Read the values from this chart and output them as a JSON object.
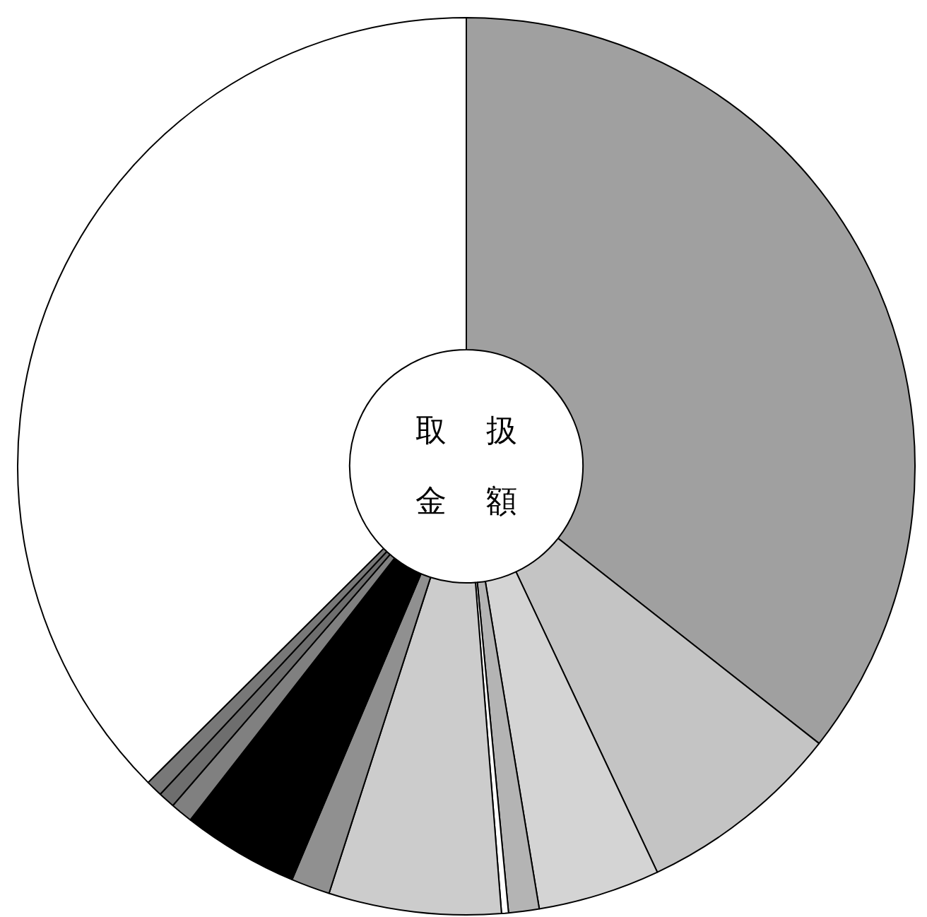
{
  "chart_data": {
    "type": "donut",
    "title": "取扱金額",
    "categories": [
      null,
      null,
      null,
      null,
      null,
      null,
      null,
      null,
      null,
      null,
      null,
      null
    ],
    "values": [
      35.6,
      7.4,
      4.4,
      1.1,
      0.25,
      6.2,
      1.4,
      4.2,
      0.8,
      0.6,
      0.6,
      37.45
    ],
    "colors": [
      "#a0a0a0",
      "#c4c4c4",
      "#d4d4d4",
      "#b4b4b4",
      "#ffffff",
      "#cccccc",
      "#909090",
      "#000000",
      "#808080",
      "#6e6e6e",
      "#787878",
      "#ffffff"
    ],
    "legend": false
  }
}
